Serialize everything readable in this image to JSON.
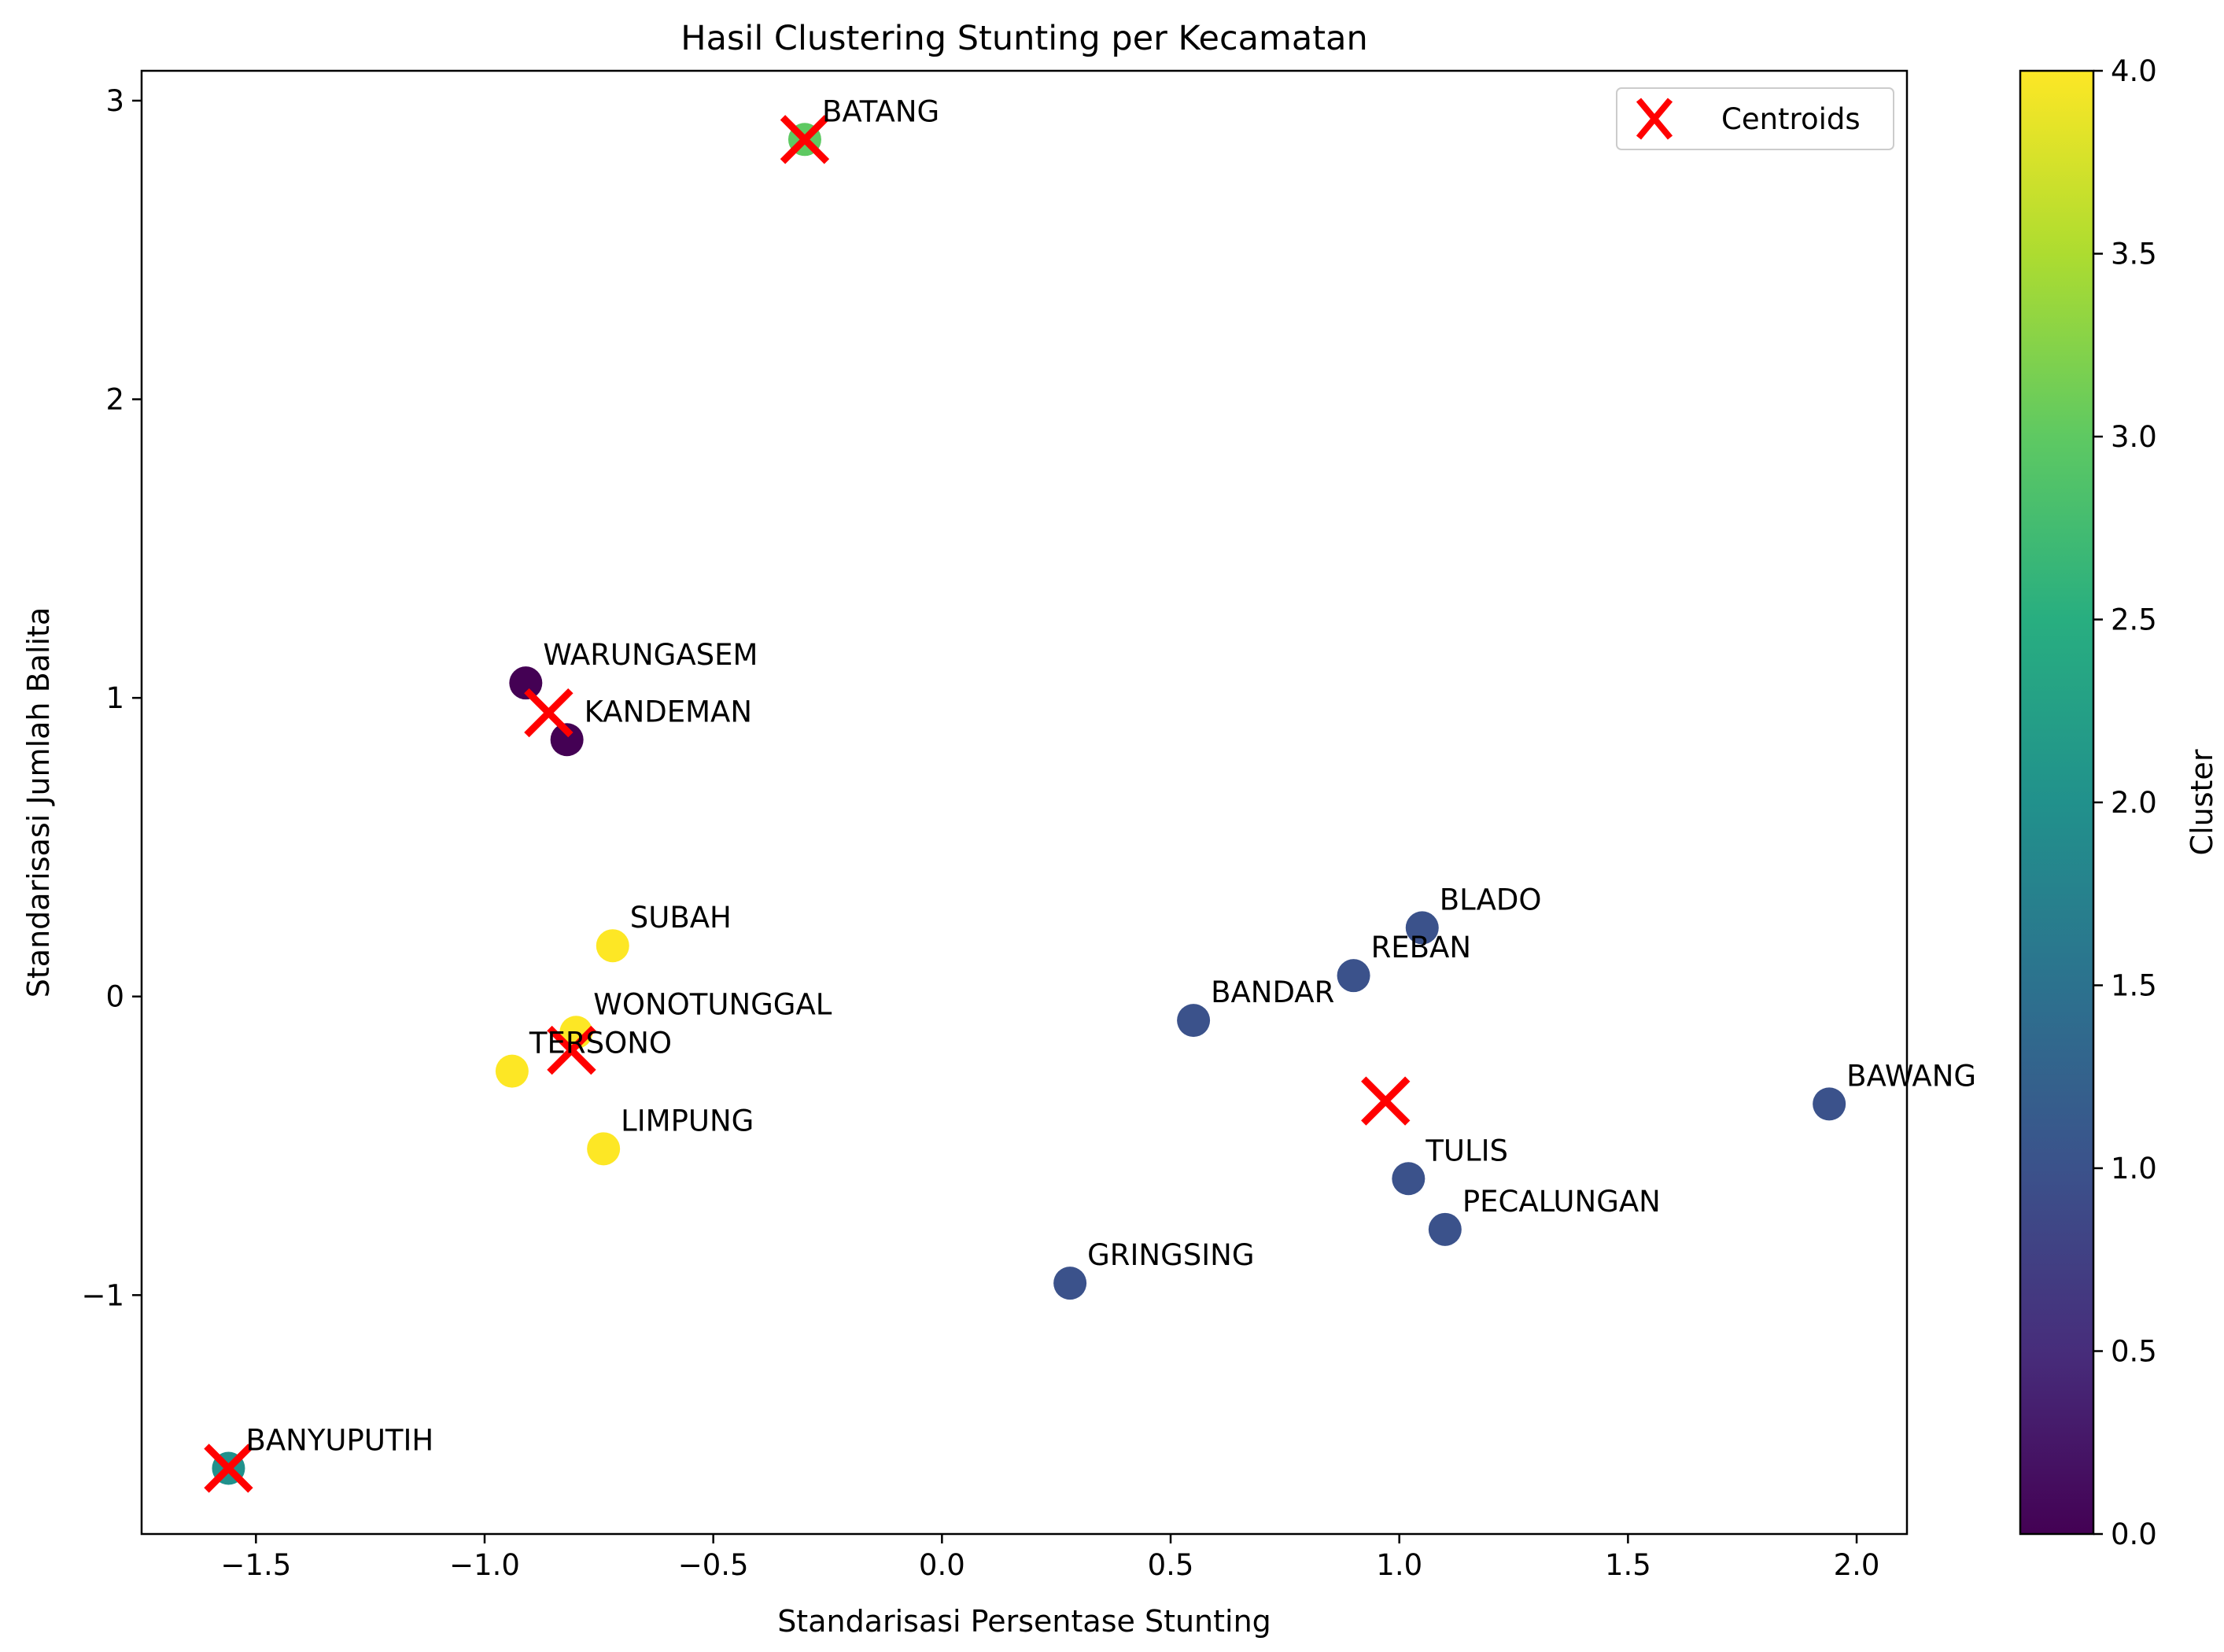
{
  "chart_data": {
    "type": "scatter",
    "title": "Hasil Clustering Stunting per Kecamatan",
    "xlabel": "Standarisasi Persentase Stunting",
    "ylabel": "Standarisasi Jumlah Balita",
    "xlim": [
      -1.75,
      2.11
    ],
    "ylim": [
      -1.8,
      3.1
    ],
    "xticks": [
      -1.5,
      -1.0,
      -0.5,
      0.0,
      0.5,
      1.0,
      1.5,
      2.0
    ],
    "xtick_labels": [
      "−1.5",
      "−1.0",
      "−0.5",
      "0.0",
      "0.5",
      "1.0",
      "1.5",
      "2.0"
    ],
    "yticks": [
      -1,
      0,
      1,
      2,
      3
    ],
    "ytick_labels": [
      "−1",
      "0",
      "1",
      "2",
      "3"
    ],
    "grid": false,
    "legend": {
      "position": "top-right",
      "entries": [
        {
          "label": "Centroids",
          "marker": "x",
          "color": "#ff0000"
        }
      ]
    },
    "colorbar": {
      "label": "Cluster",
      "range": [
        0.0,
        4.0
      ],
      "colormap": "viridis",
      "ticks": [
        0.0,
        0.5,
        1.0,
        1.5,
        2.0,
        2.5,
        3.0,
        3.5,
        4.0
      ],
      "tick_labels": [
        "0.0",
        "0.5",
        "1.0",
        "1.5",
        "2.0",
        "2.5",
        "3.0",
        "3.5",
        "4.0"
      ]
    },
    "points": [
      {
        "label": "BATANG",
        "x": -0.3,
        "y": 2.87,
        "cluster": 3
      },
      {
        "label": "WARUNGASEM",
        "x": -0.91,
        "y": 1.05,
        "cluster": 0
      },
      {
        "label": "KANDEMAN",
        "x": -0.82,
        "y": 0.86,
        "cluster": 0
      },
      {
        "label": "SUBAH",
        "x": -0.72,
        "y": 0.17,
        "cluster": 4
      },
      {
        "label": "WONOTUNGGAL",
        "x": -0.8,
        "y": -0.12,
        "cluster": 4
      },
      {
        "label": "TERSONO",
        "x": -0.94,
        "y": -0.25,
        "cluster": 4
      },
      {
        "label": "LIMPUNG",
        "x": -0.74,
        "y": -0.51,
        "cluster": 4
      },
      {
        "label": "BLADO",
        "x": 1.05,
        "y": 0.23,
        "cluster": 1
      },
      {
        "label": "REBAN",
        "x": 0.9,
        "y": 0.07,
        "cluster": 1
      },
      {
        "label": "BANDAR",
        "x": 0.55,
        "y": -0.08,
        "cluster": 1
      },
      {
        "label": "BAWANG",
        "x": 1.94,
        "y": -0.36,
        "cluster": 1
      },
      {
        "label": "TULIS",
        "x": 1.02,
        "y": -0.61,
        "cluster": 1
      },
      {
        "label": "PECALUNGAN",
        "x": 1.1,
        "y": -0.78,
        "cluster": 1
      },
      {
        "label": "GRINGSING",
        "x": 0.28,
        "y": -0.96,
        "cluster": 1
      },
      {
        "label": "BANYUPUTIH",
        "x": -1.56,
        "y": -1.58,
        "cluster": 2
      }
    ],
    "centroids": [
      {
        "x": -0.3,
        "y": 2.87
      },
      {
        "x": -0.86,
        "y": 0.95
      },
      {
        "x": -0.81,
        "y": -0.18
      },
      {
        "x": 0.97,
        "y": -0.35
      },
      {
        "x": -1.56,
        "y": -1.58
      }
    ],
    "cluster_colors": [
      "#440154",
      "#3b528b",
      "#21918c",
      "#5ec962",
      "#fde725"
    ],
    "centroid_color": "#ff0000"
  }
}
